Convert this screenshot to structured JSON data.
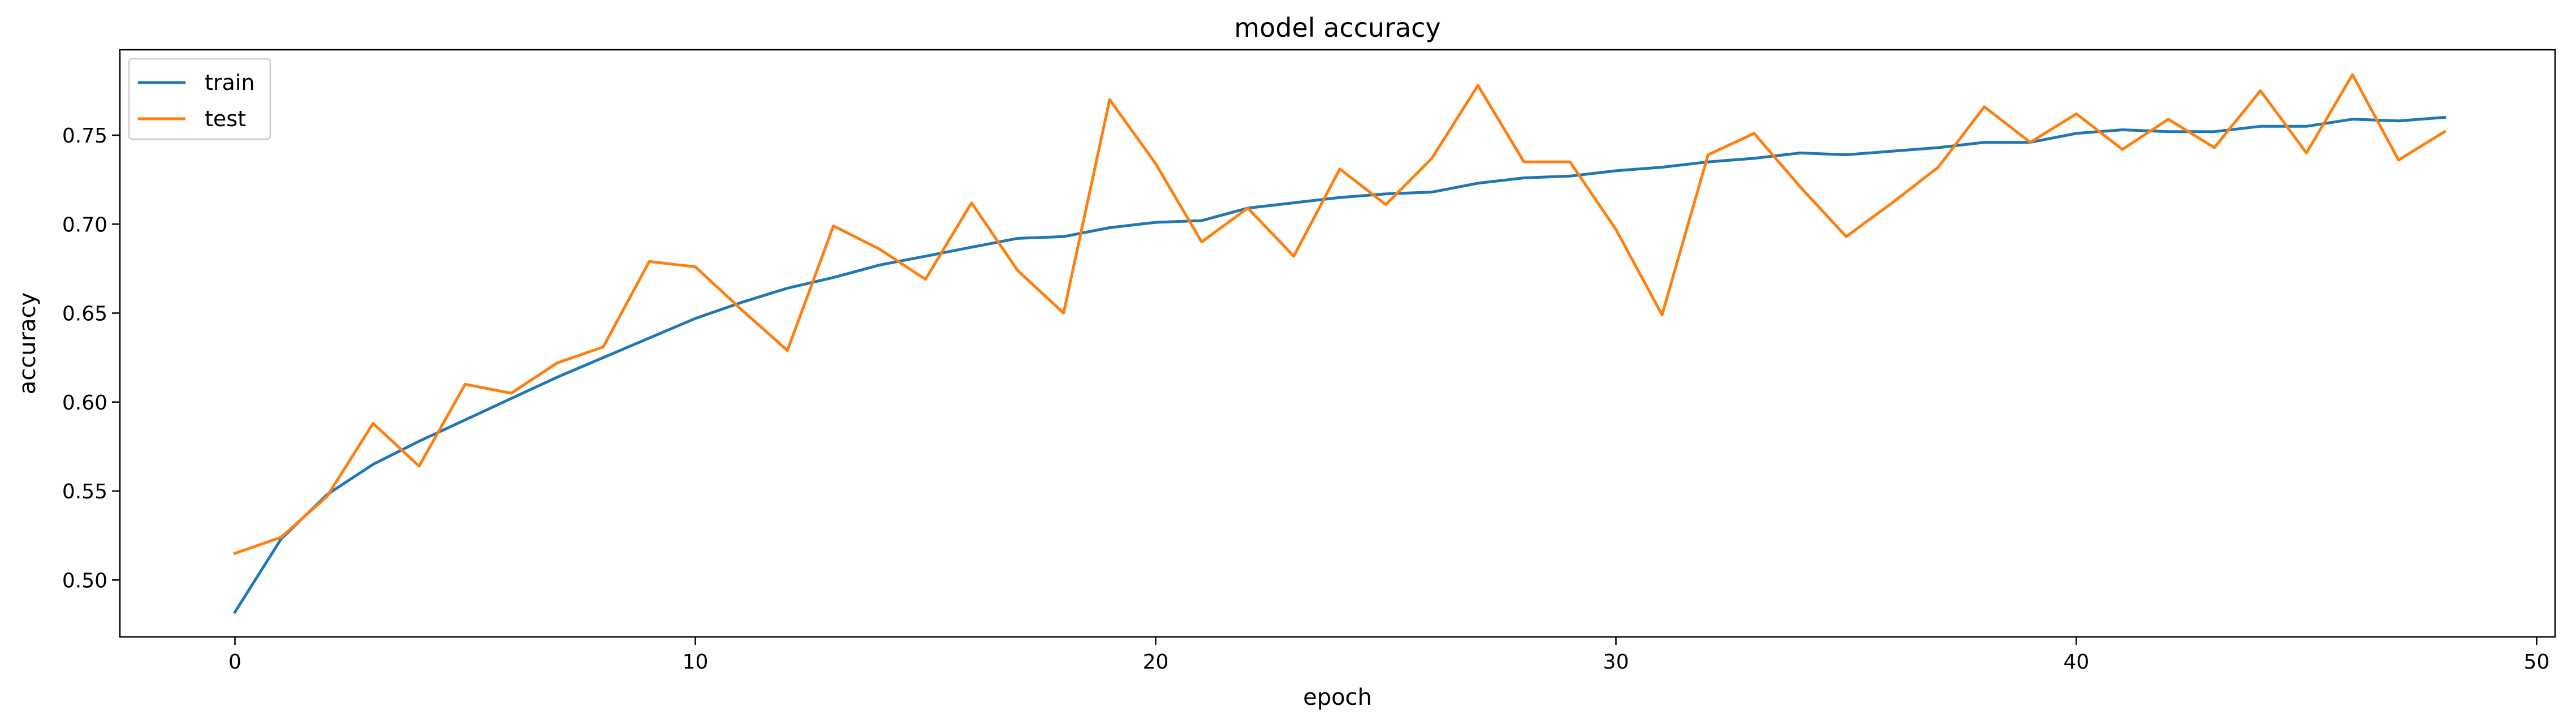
{
  "chart_data": {
    "type": "line",
    "title": "model accuracy",
    "xlabel": "epoch",
    "ylabel": "accuracy",
    "xlim": [
      -2.5,
      50.4
    ],
    "ylim": [
      0.468,
      0.798
    ],
    "xticks": [
      0,
      10,
      20,
      30,
      40,
      50
    ],
    "yticks": [
      0.5,
      0.55,
      0.6,
      0.65,
      0.7,
      0.75
    ],
    "xtick_labels": [
      "0",
      "10",
      "20",
      "30",
      "40",
      "50"
    ],
    "ytick_labels": [
      "0.50",
      "0.55",
      "0.60",
      "0.65",
      "0.70",
      "0.75"
    ],
    "grid": false,
    "legend_position": "top-left",
    "x": [
      0,
      1,
      2,
      3,
      4,
      5,
      6,
      7,
      8,
      9,
      10,
      11,
      12,
      13,
      14,
      15,
      16,
      17,
      18,
      19,
      20,
      21,
      22,
      23,
      24,
      25,
      26,
      27,
      28,
      29,
      30,
      31,
      32,
      33,
      34,
      35,
      36,
      37,
      38,
      39,
      40,
      41,
      42,
      43,
      44,
      45,
      46,
      47,
      48
    ],
    "series": [
      {
        "name": "train",
        "color": "#1f77b4",
        "values": [
          0.482,
          0.523,
          0.548,
          0.565,
          0.578,
          0.59,
          0.602,
          0.614,
          0.625,
          0.636,
          0.647,
          0.656,
          0.664,
          0.67,
          0.677,
          0.682,
          0.687,
          0.692,
          0.693,
          0.698,
          0.701,
          0.702,
          0.709,
          0.712,
          0.715,
          0.717,
          0.718,
          0.723,
          0.726,
          0.727,
          0.73,
          0.732,
          0.735,
          0.737,
          0.74,
          0.739,
          0.741,
          0.743,
          0.746,
          0.746,
          0.751,
          0.753,
          0.752,
          0.752,
          0.755,
          0.755,
          0.759,
          0.758,
          0.76
        ]
      },
      {
        "name": "test",
        "color": "#ff7f0e",
        "values": [
          0.515,
          0.524,
          0.547,
          0.588,
          0.564,
          0.61,
          0.605,
          0.622,
          0.631,
          0.679,
          0.676,
          0.652,
          0.629,
          0.699,
          0.686,
          0.669,
          0.712,
          0.674,
          0.65,
          0.77,
          0.734,
          0.69,
          0.709,
          0.682,
          0.731,
          0.711,
          0.737,
          0.778,
          0.735,
          0.735,
          0.697,
          0.649,
          0.739,
          0.751,
          0.721,
          0.693,
          0.712,
          0.732,
          0.766,
          0.746,
          0.762,
          0.742,
          0.759,
          0.743,
          0.775,
          0.74,
          0.784,
          0.736,
          0.752
        ]
      }
    ]
  }
}
